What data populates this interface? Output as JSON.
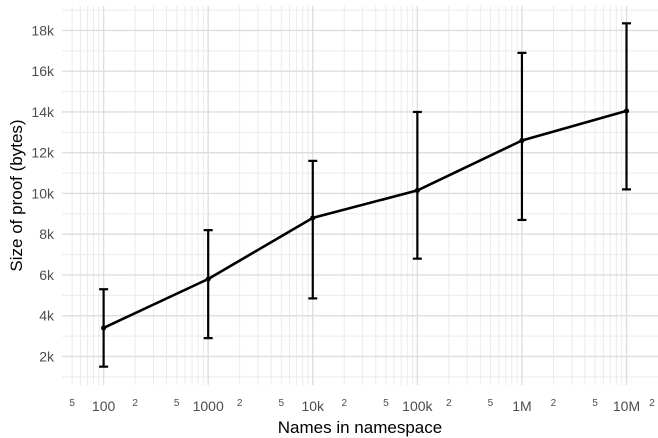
{
  "chart_data": {
    "type": "line",
    "title": "",
    "xlabel": "Names in namespace",
    "ylabel": "Size of proof (bytes)",
    "x_scale": "log",
    "xlim": [
      40,
      20000000
    ],
    "ylim": [
      600,
      19200
    ],
    "x": [
      100,
      1000,
      10000,
      100000,
      1000000,
      10000000
    ],
    "x_tick_labels": [
      "100",
      "1000",
      "10k",
      "100k",
      "1M",
      "10M"
    ],
    "x_minor_tick_labels": [
      "5",
      "2",
      "5",
      "2",
      "5",
      "2",
      "5",
      "2",
      "5",
      "2",
      "5",
      "2"
    ],
    "y_ticks": [
      2000,
      4000,
      6000,
      8000,
      10000,
      12000,
      14000,
      16000,
      18000
    ],
    "y_tick_labels": [
      "2k",
      "4k",
      "6k",
      "8k",
      "10k",
      "12k",
      "14k",
      "16k",
      "18k"
    ],
    "series": [
      {
        "values": [
          3400,
          5800,
          8800,
          10150,
          12600,
          14050
        ],
        "error_low": [
          1500,
          2900,
          4850,
          6800,
          8700,
          10200
        ],
        "error_high": [
          5300,
          8200,
          11600,
          14000,
          16900,
          18350
        ],
        "color": "#000000"
      }
    ],
    "grid": true,
    "legend": "none"
  }
}
